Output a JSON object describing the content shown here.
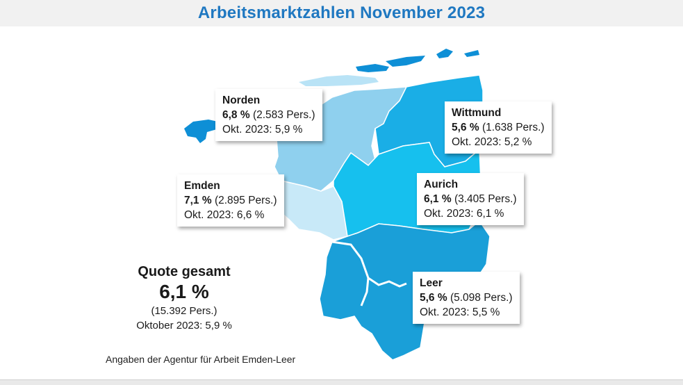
{
  "title": "Arbeitsmarktzahlen November 2023",
  "colors": {
    "title": "#1f78c1",
    "norden": "#8fd0ee",
    "emden": "#c8e9f8",
    "wittmund": "#1aaee6",
    "aurich": "#16c0ee",
    "leer": "#1a9fd8",
    "islands": "#0e8fd6",
    "border": "#ffffff"
  },
  "regions": [
    {
      "key": "norden",
      "name": "Norden",
      "rate": "6,8 %",
      "persons": "(2.583 Pers.)",
      "previous": "Okt. 2023: 5,9 %"
    },
    {
      "key": "wittmund",
      "name": "Wittmund",
      "rate": "5,6 %",
      "persons": "(1.638 Pers.)",
      "previous": "Okt. 2023: 5,2 %"
    },
    {
      "key": "emden",
      "name": "Emden",
      "rate": "7,1 %",
      "persons": "(2.895 Pers.)",
      "previous": "Okt. 2023: 6,6 %"
    },
    {
      "key": "aurich",
      "name": "Aurich",
      "rate": "6,1 %",
      "persons": "(3.405 Pers.)",
      "previous": "Okt. 2023: 6,1 %"
    },
    {
      "key": "leer",
      "name": "Leer",
      "rate": "5,6 %",
      "persons": "(5.098 Pers.)",
      "previous": "Okt. 2023: 5,5 %"
    }
  ],
  "total": {
    "heading": "Quote gesamt",
    "rate": "6,1 %",
    "persons": "(15.392 Pers.)",
    "previous": "Oktober 2023: 5,9 %"
  },
  "source": "Angaben der Agentur für Arbeit Emden-Leer"
}
